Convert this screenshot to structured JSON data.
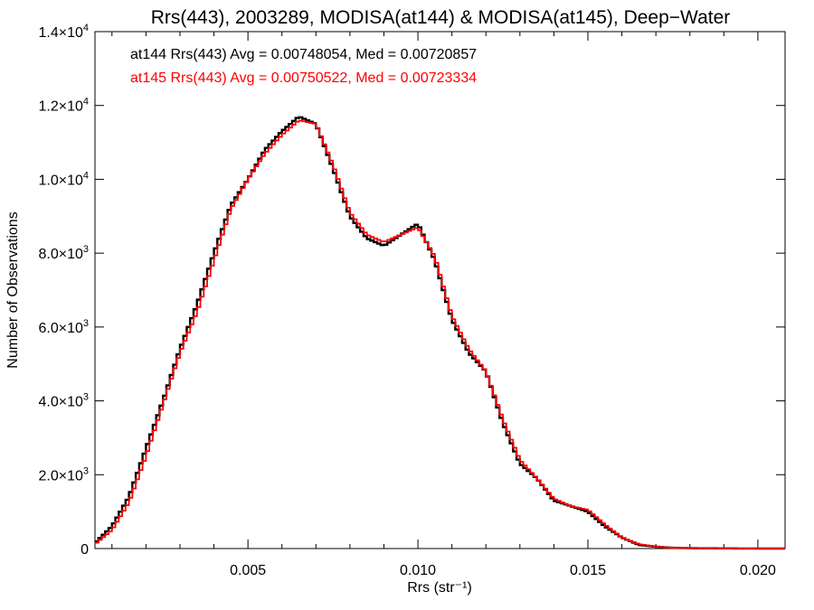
{
  "chart_data": {
    "type": "line",
    "title": "Rrs(443), 2003289, MODISA(at144) & MODISA(at145), Deep−Water",
    "xlabel": "Rrs (str⁻¹)",
    "ylabel": "Number of Observations",
    "xlim": [
      0.0005,
      0.0208
    ],
    "ylim": [
      0,
      14000
    ],
    "x_ticks": [
      0.005,
      0.01,
      0.015,
      0.02
    ],
    "x_tick_labels": [
      "0.005",
      "0.010",
      "0.015",
      "0.020"
    ],
    "y_ticks": [
      0,
      2000,
      4000,
      6000,
      8000,
      10000,
      12000,
      14000
    ],
    "y_tick_labels": [
      {
        "mantissa": "0",
        "exponent": ""
      },
      {
        "mantissa": "2.0×10",
        "exponent": "3"
      },
      {
        "mantissa": "4.0×10",
        "exponent": "3"
      },
      {
        "mantissa": "6.0×10",
        "exponent": "3"
      },
      {
        "mantissa": "8.0×10",
        "exponent": "3"
      },
      {
        "mantissa": "1.0×10",
        "exponent": "4"
      },
      {
        "mantissa": "1.2×10",
        "exponent": "4"
      },
      {
        "mantissa": "1.4×10",
        "exponent": "4"
      }
    ],
    "grid": false,
    "legend_placement": "top-left",
    "series": [
      {
        "name": "at144",
        "color": "#000000",
        "label": "at144 Rrs(443) Avg = 0.00748054, Med = 0.00720857",
        "x": [
          0.0005,
          0.001,
          0.0015,
          0.002,
          0.0025,
          0.003,
          0.0035,
          0.004,
          0.0045,
          0.005,
          0.0055,
          0.006,
          0.0065,
          0.007,
          0.0075,
          0.008,
          0.0085,
          0.009,
          0.0095,
          0.01,
          0.0105,
          0.011,
          0.0115,
          0.012,
          0.0125,
          0.013,
          0.0135,
          0.014,
          0.0145,
          0.015,
          0.0155,
          0.016,
          0.0165,
          0.017,
          0.0175,
          0.018,
          0.019,
          0.02,
          0.0208
        ],
        "values": [
          150,
          600,
          1400,
          2700,
          4000,
          5400,
          6600,
          8000,
          9300,
          10000,
          10800,
          11300,
          11700,
          11500,
          10300,
          9000,
          8400,
          8200,
          8500,
          8800,
          7800,
          6200,
          5300,
          4800,
          3400,
          2300,
          1900,
          1300,
          1150,
          1000,
          600,
          300,
          100,
          50,
          20,
          10,
          5,
          0,
          0
        ]
      },
      {
        "name": "at145",
        "color": "#ff0000",
        "label": "at145 Rrs(443) Avg = 0.00750522, Med = 0.00723334",
        "x": [
          0.0005,
          0.001,
          0.0015,
          0.002,
          0.0025,
          0.003,
          0.0035,
          0.004,
          0.0045,
          0.005,
          0.0055,
          0.006,
          0.0065,
          0.007,
          0.0075,
          0.008,
          0.0085,
          0.009,
          0.0095,
          0.01,
          0.0105,
          0.011,
          0.0115,
          0.012,
          0.0125,
          0.013,
          0.0135,
          0.014,
          0.0145,
          0.015,
          0.0155,
          0.016,
          0.0165,
          0.017,
          0.0175,
          0.018,
          0.019,
          0.02,
          0.0208
        ],
        "values": [
          120,
          500,
          1250,
          2500,
          3900,
          5300,
          6400,
          7800,
          9200,
          10000,
          10700,
          11200,
          11600,
          11500,
          10400,
          9100,
          8500,
          8300,
          8500,
          8700,
          7900,
          6300,
          5400,
          4800,
          3500,
          2400,
          1900,
          1350,
          1150,
          1050,
          650,
          300,
          120,
          50,
          20,
          10,
          5,
          0,
          0
        ]
      }
    ]
  }
}
